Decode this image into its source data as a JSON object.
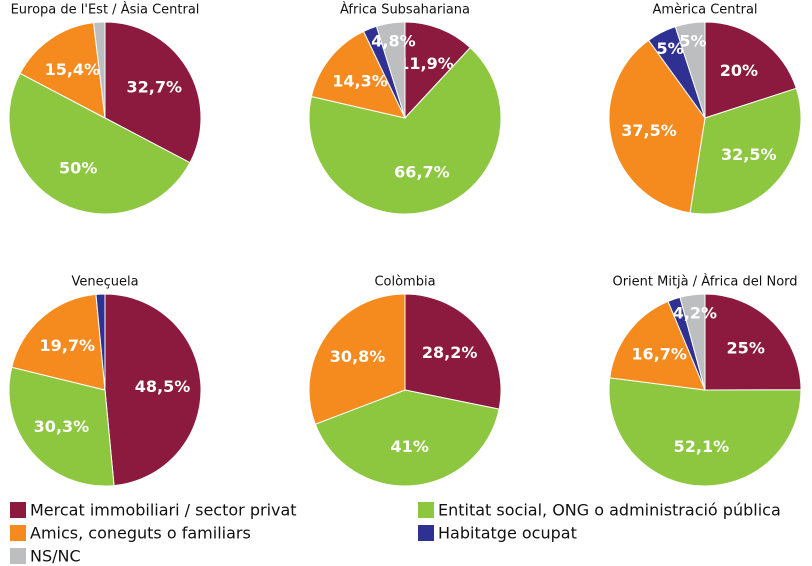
{
  "legend": {
    "names": [
      "Mercat immobiliari / sector privat",
      "Entitat social, ONG o administració pública",
      "Amics, coneguts o familiars",
      "Habitatge ocupat",
      "NS/NC"
    ],
    "colors": [
      "#8b1a3e",
      "#8dc63f",
      "#f58a1f",
      "#2e3192",
      "#bcbec0"
    ]
  },
  "chart_data": [
    {
      "type": "pie",
      "title": "Europa de l'Est / Àsia Central",
      "values": [
        32.7,
        50,
        15.4,
        0,
        1.9
      ],
      "value_labels": [
        "32,7%",
        "50%",
        "15,4%",
        null,
        null
      ]
    },
    {
      "type": "pie",
      "title": "Àfrica Subsahariana",
      "values": [
        11.9,
        66.7,
        14.3,
        2.3,
        4.8
      ],
      "value_labels": [
        "11,9%",
        "66,7%",
        "14,3%",
        null,
        "4,8%"
      ]
    },
    {
      "type": "pie",
      "title": "Amèrica Central",
      "values": [
        20,
        32.5,
        37.5,
        5,
        5
      ],
      "value_labels": [
        "20%",
        "32,5%",
        "37,5%",
        "5%",
        "5%"
      ]
    },
    {
      "type": "pie",
      "title": "Veneçuela",
      "values": [
        48.5,
        30.3,
        19.7,
        1.5,
        0
      ],
      "value_labels": [
        "48,5%",
        "30,3%",
        "19,7%",
        null,
        null
      ]
    },
    {
      "type": "pie",
      "title": "Colòmbia",
      "values": [
        28.2,
        41,
        30.8,
        0,
        0
      ],
      "value_labels": [
        "28,2%",
        "41%",
        "30,8%",
        null,
        null
      ]
    },
    {
      "type": "pie",
      "title": "Orient Mitjà / Àfrica del Nord",
      "values": [
        25,
        52.1,
        16.7,
        2.1,
        4.2
      ],
      "value_labels": [
        "25%",
        "52,1%",
        "16,7%",
        null,
        "4,2%"
      ]
    }
  ]
}
